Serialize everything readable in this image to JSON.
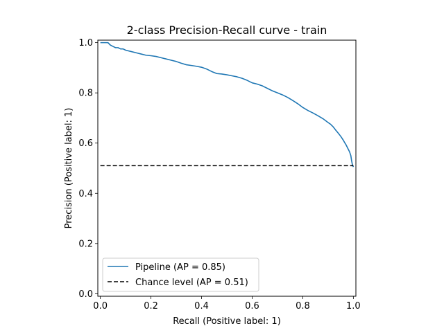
{
  "chart_data": {
    "type": "line",
    "title": "2-class Precision-Recall curve - train",
    "xlabel": "Recall (Positive label: 1)",
    "ylabel": "Precision (Positive label: 1)",
    "xlim": [
      -0.01,
      1.01
    ],
    "ylim": [
      -0.01,
      1.01
    ],
    "xticks": [
      0.0,
      0.2,
      0.4,
      0.6,
      0.8,
      1.0
    ],
    "xtick_labels": [
      "0.0",
      "0.2",
      "0.4",
      "0.6",
      "0.8",
      "1.0"
    ],
    "yticks": [
      0.0,
      0.2,
      0.4,
      0.6,
      0.8,
      1.0
    ],
    "ytick_labels": [
      "0.0",
      "0.2",
      "0.4",
      "0.6",
      "0.8",
      "1.0"
    ],
    "grid": false,
    "legend_position": "lower-left",
    "series": [
      {
        "name": "Pipeline (AP = 0.85)",
        "color": "#1f77b4",
        "style": "solid",
        "x": [
          0.0,
          0.01,
          0.02,
          0.03,
          0.04,
          0.05,
          0.06,
          0.07,
          0.08,
          0.09,
          0.1,
          0.12,
          0.14,
          0.16,
          0.18,
          0.2,
          0.22,
          0.24,
          0.26,
          0.28,
          0.3,
          0.32,
          0.34,
          0.36,
          0.38,
          0.4,
          0.42,
          0.44,
          0.46,
          0.48,
          0.5,
          0.52,
          0.54,
          0.56,
          0.58,
          0.6,
          0.62,
          0.64,
          0.66,
          0.68,
          0.7,
          0.72,
          0.74,
          0.76,
          0.78,
          0.8,
          0.82,
          0.84,
          0.86,
          0.88,
          0.9,
          0.91,
          0.92,
          0.93,
          0.94,
          0.95,
          0.96,
          0.965,
          0.97,
          0.975,
          0.98,
          0.985,
          0.99,
          0.993,
          0.996,
          1.0
        ],
        "y": [
          1.0,
          1.0,
          1.0,
          1.0,
          0.99,
          0.985,
          0.98,
          0.98,
          0.975,
          0.975,
          0.97,
          0.965,
          0.96,
          0.955,
          0.95,
          0.948,
          0.945,
          0.94,
          0.935,
          0.93,
          0.925,
          0.918,
          0.912,
          0.909,
          0.906,
          0.902,
          0.895,
          0.885,
          0.877,
          0.875,
          0.872,
          0.868,
          0.864,
          0.858,
          0.85,
          0.84,
          0.835,
          0.828,
          0.818,
          0.808,
          0.8,
          0.792,
          0.782,
          0.77,
          0.757,
          0.742,
          0.73,
          0.72,
          0.709,
          0.697,
          0.682,
          0.675,
          0.665,
          0.652,
          0.64,
          0.627,
          0.612,
          0.603,
          0.595,
          0.585,
          0.575,
          0.565,
          0.55,
          0.53,
          0.515,
          0.505
        ]
      },
      {
        "name": "Chance level (AP = 0.51)",
        "color": "#000000",
        "style": "dashed",
        "x": [
          0.0,
          1.0
        ],
        "y": [
          0.51,
          0.51
        ]
      }
    ]
  }
}
